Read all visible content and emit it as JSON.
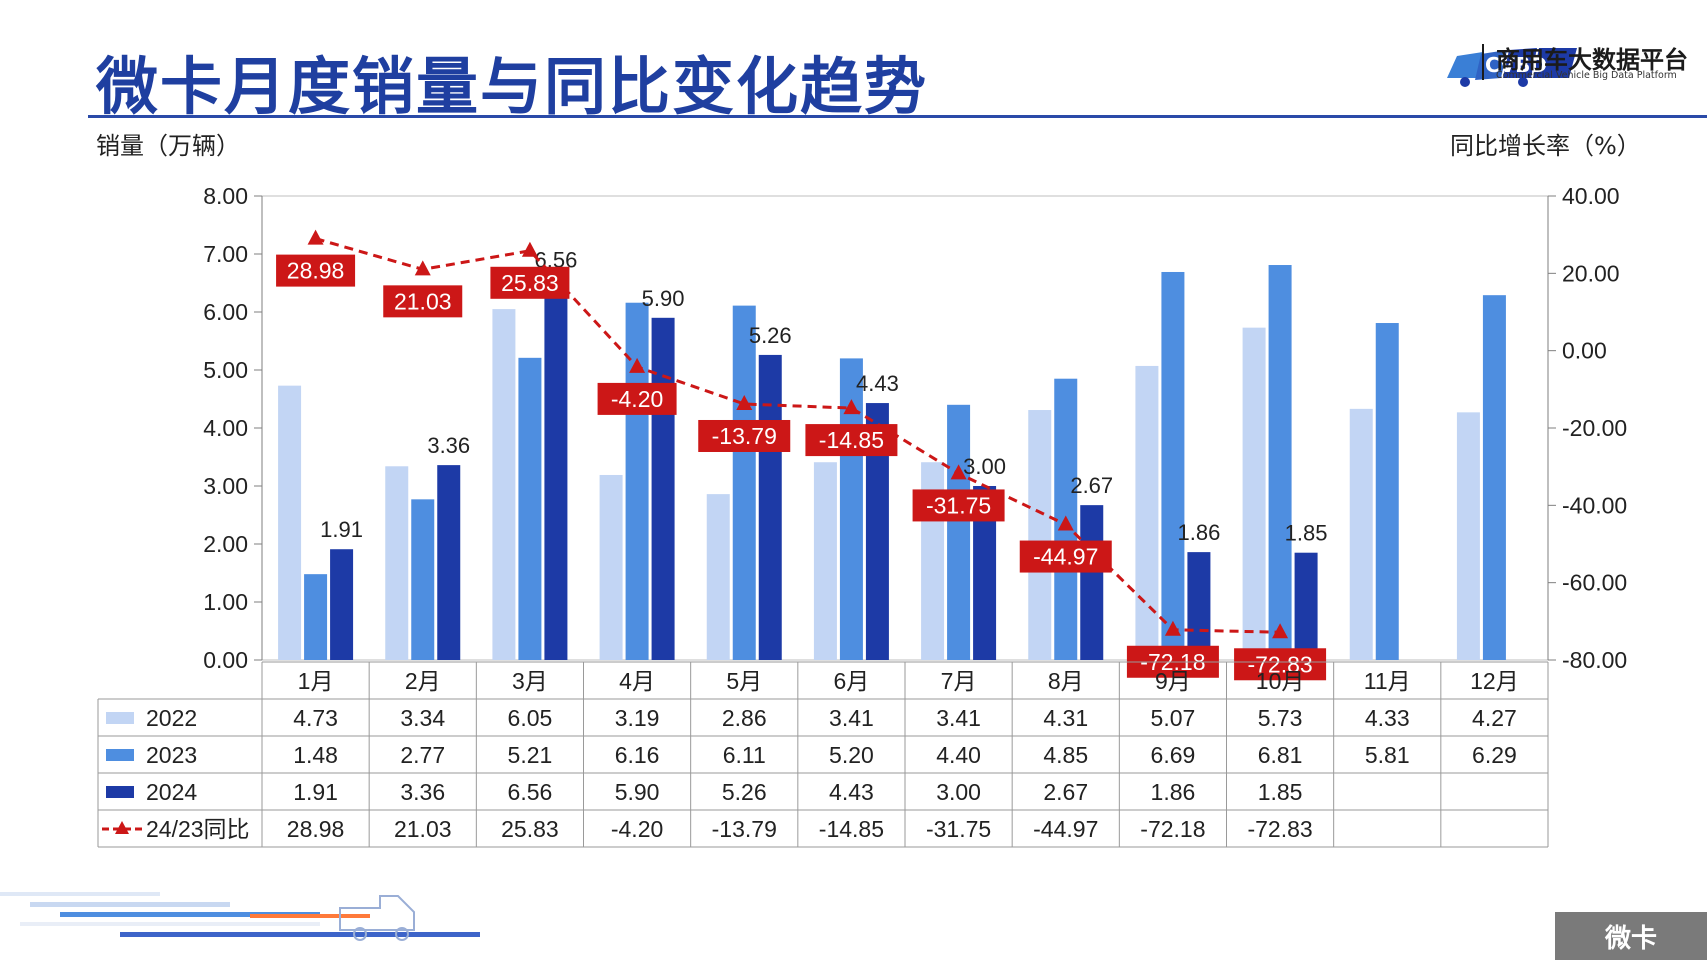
{
  "title": "微卡月度销量与同比变化趋势",
  "brand": {
    "name": "商用车大数据平台",
    "subtitle": "Commercial Vehicle Big Data Platform",
    "logo_text": "CVBD"
  },
  "corner_tag": "微卡",
  "colors": {
    "s2022": "#c2d5f4",
    "s2023": "#4e8ee0",
    "s2024": "#1d3aa6",
    "yoy": "#cc1717",
    "title": "#1f3fa0"
  },
  "chart_data": {
    "type": "bar",
    "ylabel": "销量（万辆）",
    "y2label": "同比增长率（%）",
    "ylim": [
      0,
      8
    ],
    "y2lim": [
      -80,
      40
    ],
    "yticks": [
      "0.00",
      "1.00",
      "2.00",
      "3.00",
      "4.00",
      "5.00",
      "6.00",
      "7.00",
      "8.00"
    ],
    "y2ticks": [
      "-80.00",
      "-60.00",
      "-40.00",
      "-20.00",
      "0.00",
      "20.00",
      "40.00"
    ],
    "categories": [
      "1月",
      "2月",
      "3月",
      "4月",
      "5月",
      "6月",
      "7月",
      "8月",
      "9月",
      "10月",
      "11月",
      "12月"
    ],
    "series": [
      {
        "name": "2022",
        "type": "bar",
        "values": [
          4.73,
          3.34,
          6.05,
          3.19,
          2.86,
          3.41,
          3.41,
          4.31,
          5.07,
          5.73,
          4.33,
          4.27
        ],
        "labels": [
          "4.73",
          "3.34",
          "6.05",
          "3.19",
          "2.86",
          "3.41",
          "3.41",
          "4.31",
          "5.07",
          "5.73",
          "4.33",
          "4.27"
        ]
      },
      {
        "name": "2023",
        "type": "bar",
        "values": [
          1.48,
          2.77,
          5.21,
          6.16,
          6.11,
          5.2,
          4.4,
          4.85,
          6.69,
          6.81,
          5.81,
          6.29
        ],
        "labels": [
          "1.48",
          "2.77",
          "5.21",
          "6.16",
          "6.11",
          "5.20",
          "4.40",
          "4.85",
          "6.69",
          "6.81",
          "5.81",
          "6.29"
        ]
      },
      {
        "name": "2024",
        "type": "bar",
        "values": [
          1.91,
          3.36,
          6.56,
          5.9,
          5.26,
          4.43,
          3.0,
          2.67,
          1.86,
          1.85,
          null,
          null
        ],
        "labels": [
          "1.91",
          "3.36",
          "6.56",
          "5.90",
          "5.26",
          "4.43",
          "3.00",
          "2.67",
          "1.86",
          "1.85",
          "",
          ""
        ]
      },
      {
        "name": "24/23同比",
        "type": "line",
        "axis": "right",
        "values": [
          28.98,
          21.03,
          25.83,
          -4.2,
          -13.79,
          -14.85,
          -31.75,
          -44.97,
          -72.18,
          -72.83,
          null,
          null
        ],
        "labels": [
          "28.98",
          "21.03",
          "25.83",
          "-4.20",
          "-13.79",
          "-14.85",
          "-31.75",
          "-44.97",
          "-72.18",
          "-72.83",
          "",
          ""
        ]
      }
    ]
  }
}
